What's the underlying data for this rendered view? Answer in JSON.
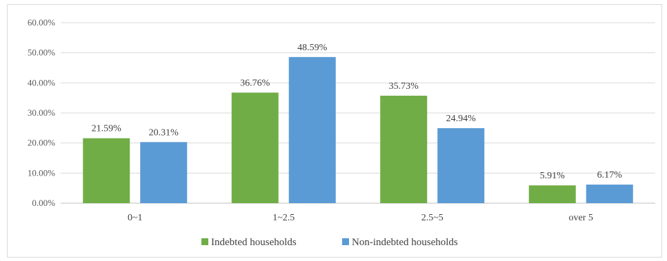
{
  "chart_data": {
    "type": "bar",
    "title": "",
    "xlabel": "",
    "ylabel": "",
    "categories": [
      "0~1",
      "1~2.5",
      "2.5~5",
      "over 5"
    ],
    "series": [
      {
        "name": "Indebted households",
        "values": [
          21.59,
          36.76,
          35.73,
          5.91
        ],
        "labels": [
          "21.59%",
          "36.76%",
          "35.73%",
          "5.91%"
        ],
        "color": "#70ad47"
      },
      {
        "name": "Non-indebted households",
        "values": [
          20.31,
          48.59,
          24.94,
          6.17
        ],
        "labels": [
          "20.31%",
          "48.59%",
          "24.94%",
          "6.17%"
        ],
        "color": "#5b9bd5"
      }
    ],
    "ylim": [
      0,
      60
    ],
    "yticks": [
      0,
      10,
      20,
      30,
      40,
      50,
      60
    ],
    "ytick_labels": [
      "0.00%",
      "10.00%",
      "20.00%",
      "30.00%",
      "40.00%",
      "50.00%",
      "60.00%"
    ],
    "grid": true,
    "legend_position": "bottom"
  }
}
